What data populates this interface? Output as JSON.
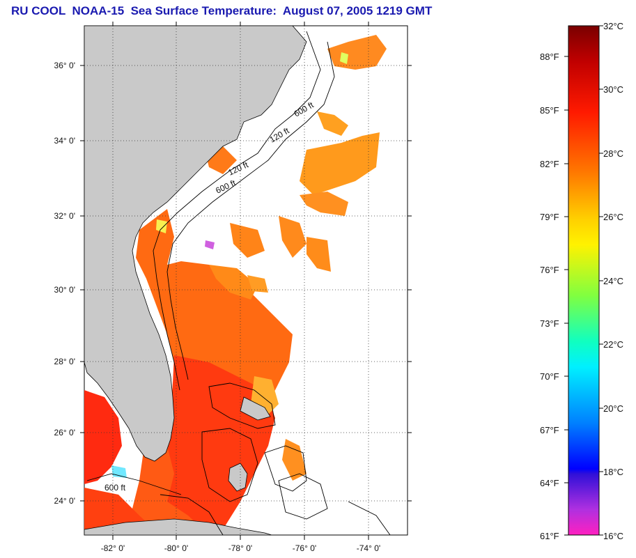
{
  "header": {
    "title": "RU COOL  NOAA-15  Sea Surface Temperature:  August 07, 2005 1219 GMT"
  },
  "map": {
    "lat_labels": [
      "36° 0'",
      "34° 0'",
      "32° 0'",
      "30° 0'",
      "28° 0'",
      "26° 0'",
      "24° 0'"
    ],
    "lon_labels": [
      "-82° 0'",
      "-80° 0'",
      "-78° 0'",
      "-76° 0'",
      "-74° 0'"
    ],
    "contour_labels": [
      "120 ft",
      "600 ft"
    ],
    "colors": {
      "land": "#c9c9c9",
      "ocean_no_data": "#ffffff",
      "sst_main": "#ff6a10"
    }
  },
  "colorbar": {
    "celsius": [
      "32°C",
      "30°C",
      "28°C",
      "26°C",
      "24°C",
      "22°C",
      "20°C",
      "18°C",
      "16°C"
    ],
    "fahrenheit": [
      "88°F",
      "85°F",
      "82°F",
      "79°F",
      "76°F",
      "73°F",
      "70°F",
      "67°F",
      "64°F",
      "61°F"
    ]
  }
}
